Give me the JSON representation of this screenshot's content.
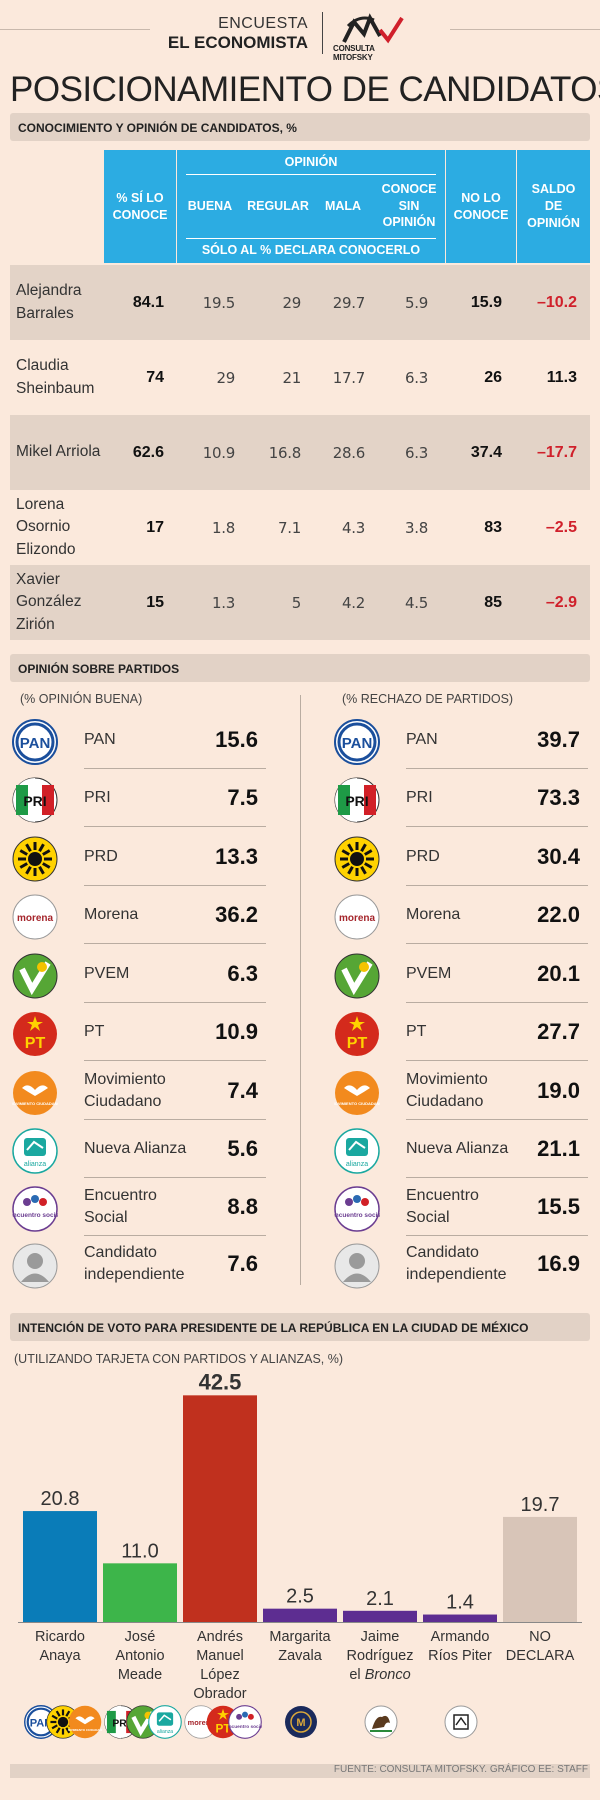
{
  "header": {
    "line1": "ENCUESTA",
    "line2": "EL ECONOMISTA",
    "logo_text": "CONSULTA MITOFSKY"
  },
  "title": "POSICIONAMIENTO DE CANDIDATOS",
  "section1": {
    "title": "CONOCIMIENTO Y OPINIÓN DE CANDIDATOS, %",
    "headers": {
      "si_conoce": "% SÍ LO CONOCE",
      "opinion": "OPINIÓN",
      "buena": "BUENA",
      "regular": "REGULAR",
      "mala": "MALA",
      "sin_opinion": "CONOCE SIN OPINIÓN",
      "solo": "SÓLO AL % DECLARA CONOCERLO",
      "no_conoce": "NO LO CONOCE",
      "saldo": "SALDO DE OPINIÓN"
    },
    "rows": [
      {
        "name": "Alejandra Barrales",
        "si": "84.1",
        "buena": "19.5",
        "regular": "29",
        "mala": "29.7",
        "sin": "5.9",
        "no": "15.9",
        "saldo": "-10.2"
      },
      {
        "name": "Claudia Sheinbaum",
        "si": "74",
        "buena": "29",
        "regular": "21",
        "mala": "17.7",
        "sin": "6.3",
        "no": "26",
        "saldo": "11.3"
      },
      {
        "name": "Mikel Arriola",
        "si": "62.6",
        "buena": "10.9",
        "regular": "16.8",
        "mala": "28.6",
        "sin": "6.3",
        "no": "37.4",
        "saldo": "-17.7"
      },
      {
        "name": "Lorena Osornio Elizondo",
        "si": "17",
        "buena": "1.8",
        "regular": "7.1",
        "mala": "4.3",
        "sin": "3.8",
        "no": "83",
        "saldo": "-2.5"
      },
      {
        "name": "Xavier González Zirión",
        "si": "15",
        "buena": "1.3",
        "regular": "5",
        "mala": "4.2",
        "sin": "4.5",
        "no": "85",
        "saldo": "-2.9"
      }
    ]
  },
  "section2": {
    "title": "OPINIÓN SOBRE PARTIDOS",
    "left_label": "(% OPINIÓN BUENA)",
    "right_label": "(% RECHAZO DE PARTIDOS)",
    "parties": [
      {
        "name": "PAN",
        "good": "15.6",
        "reject": "39.7",
        "logo": "pan-logo"
      },
      {
        "name": "PRI",
        "good": "7.5",
        "reject": "73.3",
        "logo": "pri-logo"
      },
      {
        "name": "PRD",
        "good": "13.3",
        "reject": "30.4",
        "logo": "prd-logo"
      },
      {
        "name": "Morena",
        "good": "36.2",
        "reject": "22.0",
        "logo": "morena-logo"
      },
      {
        "name": "PVEM",
        "good": "6.3",
        "reject": "20.1",
        "logo": "pvem-logo"
      },
      {
        "name": "PT",
        "good": "10.9",
        "reject": "27.7",
        "logo": "pt-logo"
      },
      {
        "name": "Movimiento Ciudadano",
        "good": "7.4",
        "reject": "19.0",
        "logo": "mc-logo"
      },
      {
        "name": "Nueva Alianza",
        "good": "5.6",
        "reject": "21.1",
        "logo": "na-logo"
      },
      {
        "name": "Encuentro Social",
        "good": "8.8",
        "reject": "15.5",
        "logo": "es-logo"
      },
      {
        "name": "Candidato independiente",
        "good": "7.6",
        "reject": "16.9",
        "logo": "independiente-logo"
      }
    ],
    "logo_texts": {
      "pan": "PAN",
      "pri": "PRI",
      "morena": "morena",
      "pt": "PT",
      "mc": "MOVIMIENTO CIUDADANO",
      "na": "alianza",
      "es": "encuentro social"
    }
  },
  "section3": {
    "title": "INTENCIÓN DE VOTO PARA PRESIDENTE  DE LA REPÚBLICA EN LA CIUDAD DE MÉXICO",
    "subtitle": "(UTILIZANDO TARJETA CON PARTIDOS Y ALIANZAS, %)"
  },
  "chart_data": {
    "type": "bar",
    "title": "INTENCIÓN DE VOTO PARA PRESIDENTE  DE LA REPÚBLICA EN LA CIUDAD DE MÉXICO",
    "categories": [
      "Ricardo Anaya",
      "José Antonio Meade",
      "Andrés Manuel López Obrador",
      "Margarita Zavala",
      "Jaime Rodríguez el Bronco",
      "Armando Ríos Piter",
      "NO DECLARA"
    ],
    "label_lines": [
      [
        "Ricardo",
        "Anaya"
      ],
      [
        "José",
        "Antonio",
        "Meade"
      ],
      [
        "Andrés",
        "Manuel",
        "López",
        "Obrador"
      ],
      [
        "Margarita",
        "Zavala"
      ],
      [
        "Jaime",
        "Rodríguez",
        "el Bronco"
      ],
      [
        "Armando",
        "Ríos Piter"
      ],
      [
        "NO",
        "DECLARA"
      ]
    ],
    "values": [
      20.8,
      11.0,
      42.5,
      2.5,
      2.1,
      1.4,
      19.7
    ],
    "value_labels": [
      "20.8",
      "11.0",
      "42.5",
      "2.5",
      "2.1",
      "1.4",
      "19.7"
    ],
    "colors": [
      "#0a7cb8",
      "#3db54a",
      "#c0301e",
      "#5d2d91",
      "#5d2d91",
      "#5d2d91",
      "#d8c5b8"
    ],
    "xlabel": "",
    "ylabel": "",
    "ylim": [
      0,
      45
    ],
    "grid": false
  },
  "footer": "FUENTE:  CONSULTA MITOFSKY.  GRÁFICO EE: STAFF"
}
